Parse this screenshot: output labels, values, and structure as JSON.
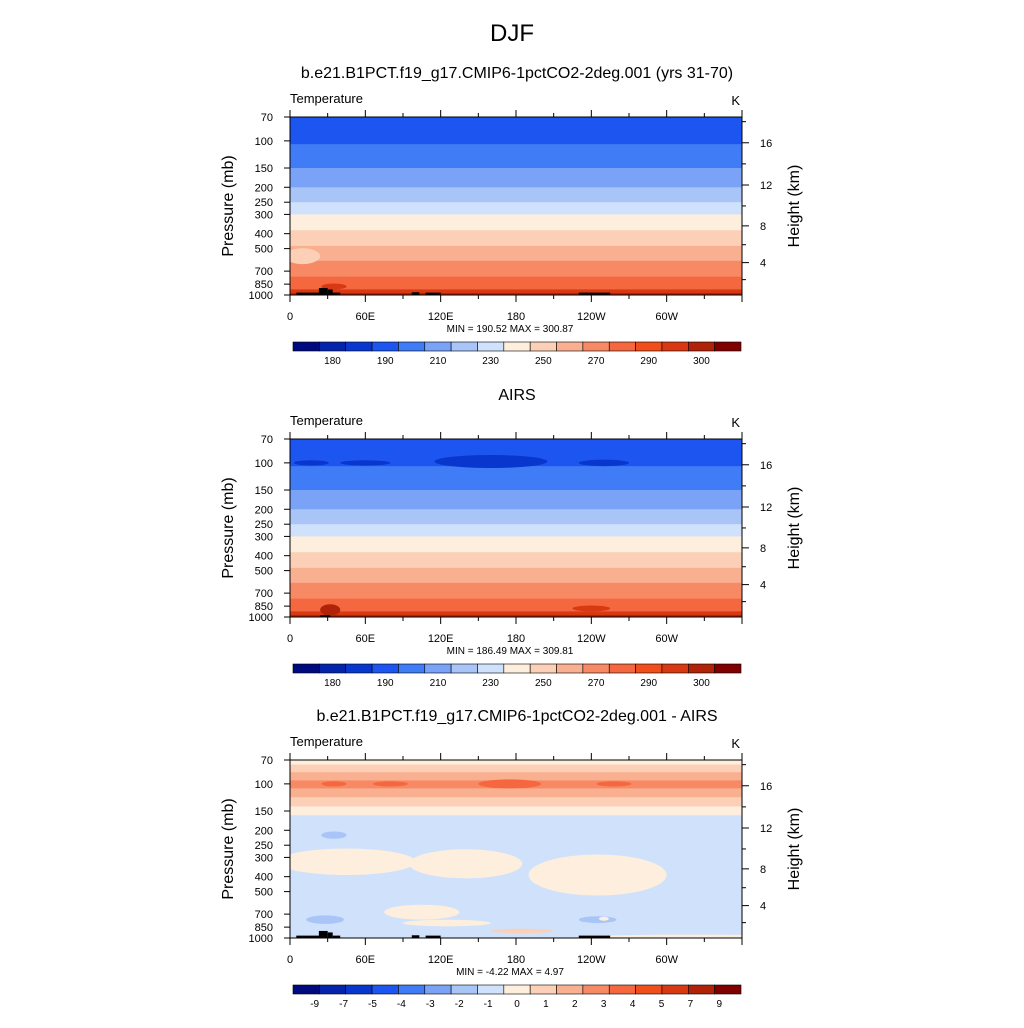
{
  "page_title": "DJF",
  "chart_data": [
    {
      "type": "heatmap",
      "title": "b.e21.B1PCT.f19_g17.CMIP6-1pctCO2-2deg.001 (yrs 31-70)",
      "left_label": "Temperature",
      "units": "K",
      "ylabel": "Pressure (mb)",
      "y2label": "Height (km)",
      "x_ticks": [
        "0",
        "60E",
        "120E",
        "180",
        "120W",
        "60W"
      ],
      "y_ticks": [
        "70",
        "100",
        "150",
        "200",
        "250",
        "300",
        "400",
        "500",
        "700",
        "850",
        "1000"
      ],
      "y2_ticks": [
        "16",
        "12",
        "8",
        "4"
      ],
      "stats": "MIN = 190.52   MAX = 300.87",
      "colorbar": {
        "labels": [
          "180",
          "190",
          "210",
          "230",
          "250",
          "270",
          "290",
          "300"
        ],
        "colors": [
          "#000a7f",
          "#0425ab",
          "#0936cd",
          "#1d55f0",
          "#3f7cf5",
          "#7aa2f6",
          "#a9c4f7",
          "#cfe1fb",
          "#fdeedd",
          "#fbd0b6",
          "#f9b091",
          "#f78a65",
          "#f5683f",
          "#f04f1b",
          "#d93912",
          "#b02308",
          "#800000"
        ]
      },
      "bands": [
        {
          "top": "70",
          "bottom": "105",
          "color": "#1d55f0"
        },
        {
          "top": "105",
          "bottom": "150",
          "color": "#3f7cf5"
        },
        {
          "top": "150",
          "bottom": "200",
          "color": "#7aa2f6"
        },
        {
          "top": "200",
          "bottom": "250",
          "color": "#a9c4f7"
        },
        {
          "top": "250",
          "bottom": "300",
          "color": "#cfe1fb"
        },
        {
          "top": "300",
          "bottom": "380",
          "color": "#fdeedd"
        },
        {
          "top": "380",
          "bottom": "480",
          "color": "#fbd0b6"
        },
        {
          "top": "480",
          "bottom": "600",
          "color": "#f9b091"
        },
        {
          "top": "600",
          "bottom": "760",
          "color": "#f78a65"
        },
        {
          "top": "760",
          "bottom": "920",
          "color": "#f5683f"
        },
        {
          "top": "920",
          "bottom": "970",
          "color": "#d93912"
        },
        {
          "top": "970",
          "bottom": "1000",
          "color": "#b02308"
        }
      ],
      "blobs": [
        {
          "lon": 10,
          "p": 560,
          "dlon": 14,
          "dp": 70,
          "color": "#fbd0b6"
        },
        {
          "lon": 35,
          "p": 880,
          "dlon": 10,
          "dp": 40,
          "color": "#d93912"
        }
      ],
      "topography": [
        {
          "lon0": 5,
          "lon1": 30,
          "p": 965
        },
        {
          "lon0": 23,
          "lon1": 30,
          "p": 900
        },
        {
          "lon0": 30,
          "lon1": 34,
          "p": 920
        },
        {
          "lon0": 34,
          "lon1": 40,
          "p": 965
        },
        {
          "lon0": 97,
          "lon1": 103,
          "p": 960
        },
        {
          "lon0": 108,
          "lon1": 120,
          "p": 965
        },
        {
          "lon0": 230,
          "lon1": 255,
          "p": 965
        }
      ]
    },
    {
      "type": "heatmap",
      "title": "AIRS",
      "left_label": "Temperature",
      "units": "K",
      "ylabel": "Pressure (mb)",
      "y2label": "Height (km)",
      "x_ticks": [
        "0",
        "60E",
        "120E",
        "180",
        "120W",
        "60W"
      ],
      "y_ticks": [
        "70",
        "100",
        "150",
        "200",
        "250",
        "300",
        "400",
        "500",
        "700",
        "850",
        "1000"
      ],
      "y2_ticks": [
        "16",
        "12",
        "8",
        "4"
      ],
      "stats": "MIN = 186.49   MAX = 309.81",
      "colorbar": {
        "labels": [
          "180",
          "190",
          "210",
          "230",
          "250",
          "270",
          "290",
          "300"
        ],
        "colors": [
          "#000a7f",
          "#0425ab",
          "#0936cd",
          "#1d55f0",
          "#3f7cf5",
          "#7aa2f6",
          "#a9c4f7",
          "#cfe1fb",
          "#fdeedd",
          "#fbd0b6",
          "#f9b091",
          "#f78a65",
          "#f5683f",
          "#f04f1b",
          "#d93912",
          "#b02308",
          "#800000"
        ]
      },
      "bands": [
        {
          "top": "70",
          "bottom": "105",
          "color": "#1d55f0"
        },
        {
          "top": "105",
          "bottom": "150",
          "color": "#3f7cf5"
        },
        {
          "top": "150",
          "bottom": "200",
          "color": "#7aa2f6"
        },
        {
          "top": "200",
          "bottom": "250",
          "color": "#a9c4f7"
        },
        {
          "top": "250",
          "bottom": "300",
          "color": "#cfe1fb"
        },
        {
          "top": "300",
          "bottom": "380",
          "color": "#fdeedd"
        },
        {
          "top": "380",
          "bottom": "480",
          "color": "#fbd0b6"
        },
        {
          "top": "480",
          "bottom": "600",
          "color": "#f9b091"
        },
        {
          "top": "600",
          "bottom": "760",
          "color": "#f78a65"
        },
        {
          "top": "760",
          "bottom": "920",
          "color": "#f5683f"
        },
        {
          "top": "920",
          "bottom": "970",
          "color": "#d93912"
        },
        {
          "top": "970",
          "bottom": "1000",
          "color": "#b02308"
        }
      ],
      "blobs": [
        {
          "lon": 17,
          "p": 100,
          "dlon": 14,
          "dp": 4,
          "color": "#0936cd"
        },
        {
          "lon": 60,
          "p": 100,
          "dlon": 20,
          "dp": 4,
          "color": "#0936cd"
        },
        {
          "lon": 160,
          "p": 98,
          "dlon": 45,
          "dp": 10,
          "color": "#0936cd"
        },
        {
          "lon": 250,
          "p": 100,
          "dlon": 20,
          "dp": 5,
          "color": "#0936cd"
        },
        {
          "lon": 240,
          "p": 880,
          "dlon": 15,
          "dp": 40,
          "color": "#d93912"
        },
        {
          "lon": 32,
          "p": 900,
          "dlon": 8,
          "dp": 80,
          "color": "#b02308"
        }
      ],
      "topography": [
        {
          "lon0": 24,
          "lon1": 32,
          "p": 975
        }
      ]
    },
    {
      "type": "heatmap",
      "title": "b.e21.B1PCT.f19_g17.CMIP6-1pctCO2-2deg.001 - AIRS",
      "left_label": "Temperature",
      "units": "K",
      "ylabel": "Pressure (mb)",
      "y2label": "Height (km)",
      "x_ticks": [
        "0",
        "60E",
        "120E",
        "180",
        "120W",
        "60W"
      ],
      "y_ticks": [
        "70",
        "100",
        "150",
        "200",
        "250",
        "300",
        "400",
        "500",
        "700",
        "850",
        "1000"
      ],
      "y2_ticks": [
        "16",
        "12",
        "8",
        "4"
      ],
      "stats": "MIN =  -4.22   MAX =   4.97",
      "colorbar": {
        "labels": [
          "-9",
          "-7",
          "-5",
          "-4",
          "-3",
          "-2",
          "-1",
          "0",
          "1",
          "2",
          "3",
          "4",
          "5",
          "7",
          "9"
        ],
        "colors": [
          "#000a7f",
          "#0425ab",
          "#0936cd",
          "#1d55f0",
          "#3f7cf5",
          "#7aa2f6",
          "#a9c4f7",
          "#cfe1fb",
          "#fdeedd",
          "#fbd0b6",
          "#f9b091",
          "#f78a65",
          "#f5683f",
          "#f04f1b",
          "#d93912",
          "#b02308",
          "#800000"
        ]
      },
      "bands": [
        {
          "top": "70",
          "bottom": "75",
          "color": "#fdeedd"
        },
        {
          "top": "75",
          "bottom": "84",
          "color": "#fbd0b6"
        },
        {
          "top": "84",
          "bottom": "95",
          "color": "#f9b091"
        },
        {
          "top": "95",
          "bottom": "107",
          "color": "#f78a65"
        },
        {
          "top": "107",
          "bottom": "122",
          "color": "#f9b091"
        },
        {
          "top": "122",
          "bottom": "140",
          "color": "#fbd0b6"
        },
        {
          "top": "140",
          "bottom": "160",
          "color": "#fdeedd"
        },
        {
          "top": "160",
          "bottom": "1000",
          "color": "#cfe1fb"
        }
      ],
      "blobs": [
        {
          "lon": 35,
          "p": 100,
          "dlon": 10,
          "dp": 4,
          "color": "#f5683f"
        },
        {
          "lon": 80,
          "p": 100,
          "dlon": 14,
          "dp": 4,
          "color": "#f5683f"
        },
        {
          "lon": 175,
          "p": 100,
          "dlon": 25,
          "dp": 7,
          "color": "#f5683f"
        },
        {
          "lon": 258,
          "p": 100,
          "dlon": 14,
          "dp": 4,
          "color": "#f5683f"
        },
        {
          "lon": 45,
          "p": 320,
          "dlon": 55,
          "dp": 70,
          "color": "#fdeedd"
        },
        {
          "lon": 140,
          "p": 330,
          "dlon": 45,
          "dp": 80,
          "color": "#fdeedd"
        },
        {
          "lon": 245,
          "p": 390,
          "dlon": 55,
          "dp": 140,
          "color": "#fdeedd"
        },
        {
          "lon": 105,
          "p": 680,
          "dlon": 30,
          "dp": 80,
          "color": "#fdeedd"
        },
        {
          "lon": 125,
          "p": 800,
          "dlon": 35,
          "dp": 40,
          "color": "#fdeedd"
        },
        {
          "lon": 35,
          "p": 215,
          "dlon": 10,
          "dp": 12,
          "color": "#a9c4f7"
        },
        {
          "lon": 28,
          "p": 760,
          "dlon": 15,
          "dp": 50,
          "color": "#a9c4f7"
        },
        {
          "lon": 245,
          "p": 760,
          "dlon": 15,
          "dp": 40,
          "color": "#a9c4f7"
        },
        {
          "lon": 250,
          "p": 750,
          "dlon": 4,
          "dp": 20,
          "color": "#fdeedd"
        },
        {
          "lon": 185,
          "p": 900,
          "dlon": 25,
          "dp": 30,
          "color": "#fbd0b6"
        },
        {
          "lon": 320,
          "p": 980,
          "dlon": 80,
          "dp": 20,
          "color": "#fdeedd"
        }
      ],
      "topography": [
        {
          "lon0": 5,
          "lon1": 30,
          "p": 965
        },
        {
          "lon0": 23,
          "lon1": 30,
          "p": 900
        },
        {
          "lon0": 30,
          "lon1": 34,
          "p": 920
        },
        {
          "lon0": 34,
          "lon1": 40,
          "p": 965
        },
        {
          "lon0": 97,
          "lon1": 103,
          "p": 960
        },
        {
          "lon0": 108,
          "lon1": 120,
          "p": 965
        },
        {
          "lon0": 230,
          "lon1": 255,
          "p": 965
        }
      ]
    }
  ]
}
